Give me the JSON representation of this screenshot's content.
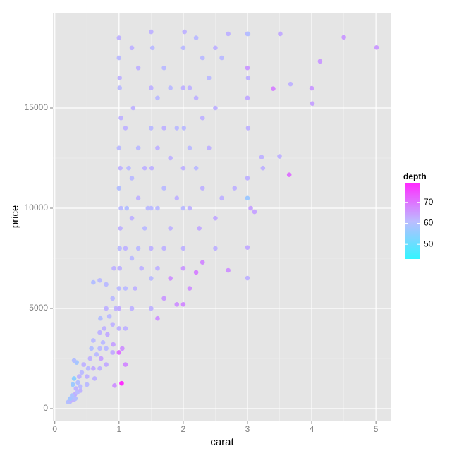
{
  "chart_data": {
    "type": "scatter",
    "x_label": "carat",
    "y_label": "price",
    "x": [
      0.23,
      0.21,
      0.25,
      0.3,
      0.3,
      0.31,
      0.32,
      0.35,
      0.4,
      0.4,
      0.24,
      0.27,
      0.33,
      0.36,
      0.3,
      0.28,
      0.38,
      0.42,
      0.45,
      0.34,
      0.3,
      0.5,
      0.5,
      0.52,
      0.55,
      0.57,
      0.6,
      0.6,
      0.62,
      0.65,
      0.7,
      0.7,
      0.7,
      0.71,
      0.72,
      0.75,
      0.77,
      0.8,
      0.8,
      0.8,
      0.82,
      0.85,
      0.9,
      0.9,
      0.9,
      0.91,
      0.95,
      0.6,
      0.7,
      0.8,
      0.93,
      0.92,
      1.0,
      1.0,
      1.0,
      1.01,
      1.01,
      1.02,
      1.03,
      1.0,
      1.02,
      1.0,
      1.03,
      1.01,
      1.01,
      1.0,
      1.0,
      1.04,
      1.05,
      1.1,
      1.1,
      1.1,
      1.12,
      1.15,
      1.1,
      1.2,
      1.2,
      1.2,
      1.2,
      1.22,
      1.25,
      1.3,
      1.3,
      1.3,
      1.35,
      1.4,
      1.4,
      1.45,
      1.2,
      1.3,
      1.1,
      1.0,
      1.5,
      1.5,
      1.5,
      1.5,
      1.51,
      1.5,
      1.5,
      1.52,
      1.5,
      1.6,
      1.6,
      1.6,
      1.6,
      1.7,
      1.7,
      1.7,
      1.7,
      1.8,
      1.8,
      1.8,
      1.9,
      1.9,
      1.6,
      1.7,
      1.8,
      1.9,
      2.0,
      2.0,
      2.0,
      2.01,
      2.0,
      2.0,
      2.02,
      2.1,
      2.1,
      2.1,
      2.2,
      2.2,
      2.2,
      2.3,
      2.3,
      2.3,
      2.4,
      2.4,
      2.5,
      2.5,
      2.6,
      2.7,
      2.0,
      2.1,
      2.2,
      2.3,
      2.5,
      2.5,
      2.7,
      2.6,
      2.8,
      2.0,
      2.25,
      3.0,
      3.0,
      3.0,
      3.05,
      3.11,
      3.0,
      3.22,
      3.01,
      3.0,
      3.01,
      3.0,
      3.0,
      3.01,
      3.24,
      3.4,
      3.5,
      3.51,
      3.65,
      3.67,
      4.0,
      4.01,
      4.13,
      4.5,
      5.01
    ],
    "values": [
      326,
      326,
      400,
      450,
      600,
      700,
      500,
      800,
      900,
      1100,
      500,
      650,
      1000,
      1300,
      1500,
      1200,
      1600,
      1800,
      2200,
      2300,
      2400,
      1200,
      1600,
      2000,
      2500,
      3000,
      2000,
      3400,
      1500,
      2700,
      2000,
      3000,
      3800,
      4500,
      2500,
      3300,
      4000,
      2200,
      3000,
      5000,
      3700,
      4600,
      2800,
      4200,
      5500,
      3200,
      5000,
      6300,
      6400,
      6200,
      1150,
      7000,
      4000,
      5000,
      6000,
      7000,
      8000,
      9000,
      10000,
      11000,
      12000,
      13000,
      14500,
      16000,
      16500,
      17500,
      18500,
      1262,
      3000,
      4000,
      6000,
      8000,
      10000,
      12000,
      14000,
      5000,
      7500,
      9500,
      11500,
      15000,
      6000,
      8000,
      10500,
      13000,
      7000,
      9000,
      12000,
      10000,
      18000,
      17000,
      2200,
      2800,
      5000,
      6500,
      8000,
      10000,
      12000,
      14000,
      16000,
      18000,
      18800,
      7000,
      10000,
      13000,
      15500,
      8000,
      11000,
      14000,
      17000,
      9000,
      12500,
      16000,
      10500,
      14000,
      4500,
      5500,
      6500,
      5200,
      8000,
      10000,
      12000,
      14000,
      16000,
      18000,
      18800,
      10000,
      13000,
      16000,
      12000,
      15500,
      18500,
      11000,
      14500,
      17500,
      13000,
      16500,
      15000,
      18000,
      17500,
      18700,
      5200,
      6000,
      6800,
      7300,
      8000,
      9500,
      6900,
      10500,
      11000,
      7000,
      9000,
      6512,
      8040,
      10500,
      10000,
      9823,
      11500,
      12545,
      14000,
      15500,
      16500,
      17000,
      18700,
      18700,
      12000,
      15964,
      12587,
      18701,
      11668,
      16193,
      15984,
      15223,
      17329,
      18531,
      18018
    ],
    "color_by": {
      "title": "depth",
      "values": [
        61,
        60,
        62,
        62,
        61,
        63,
        60,
        61,
        62,
        61,
        58,
        59,
        62,
        60,
        55,
        57,
        62,
        61,
        62,
        58,
        60,
        61,
        62,
        61,
        62,
        60,
        63,
        61,
        62,
        61,
        62,
        61,
        62,
        60,
        64,
        61,
        62,
        63,
        61,
        62,
        63,
        61,
        63,
        62,
        61,
        64,
        62,
        60,
        61,
        61,
        66,
        62,
        62,
        63,
        61,
        62,
        61,
        62,
        61,
        60,
        62,
        61,
        62,
        61,
        62,
        61,
        62,
        79,
        66,
        62,
        61,
        62,
        60,
        61,
        62,
        62,
        61,
        62,
        61,
        62,
        62,
        61,
        62,
        61,
        62,
        61,
        62,
        61,
        62,
        62,
        67,
        70,
        62,
        61,
        62,
        61,
        62,
        61,
        62,
        61,
        62,
        62,
        61,
        62,
        61,
        62,
        61,
        62,
        61,
        62,
        62,
        61,
        62,
        61,
        66,
        65,
        66,
        66,
        62,
        61,
        62,
        61,
        62,
        61,
        62,
        62,
        61,
        62,
        61,
        62,
        61,
        62,
        62,
        61,
        62,
        61,
        62,
        62,
        61,
        62,
        67,
        66,
        68,
        67,
        62,
        63,
        66,
        62,
        62,
        65,
        63,
        62,
        63,
        57,
        64,
        64,
        62,
        62,
        62,
        63,
        62,
        65,
        62,
        60,
        62,
        68,
        62,
        63,
        70,
        62,
        65,
        64,
        65,
        65,
        65
      ],
      "lim": [
        43,
        79
      ],
      "ticks": [
        50,
        60,
        70
      ],
      "colors": [
        "#33f5ff",
        "#bcbcff",
        "#ff2cff"
      ]
    },
    "xlim": [
      -0.03,
      5.24
    ],
    "ylim": [
      -634,
      19754
    ],
    "xticks": [
      0,
      1,
      2,
      3,
      4,
      5
    ],
    "yticks": [
      0,
      5000,
      10000,
      15000
    ],
    "grid": true
  }
}
